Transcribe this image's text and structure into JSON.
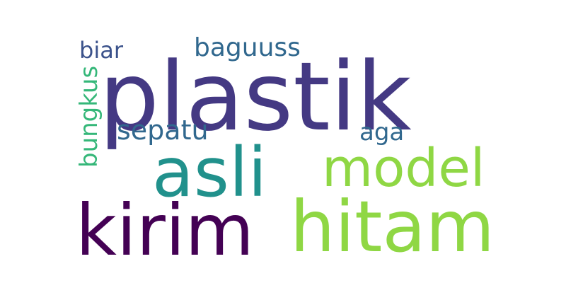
{
  "word_cloud": {
    "words": [
      {
        "text": "plastik",
        "color": "#443983"
      },
      {
        "text": "asli",
        "color": "#21918c"
      },
      {
        "text": "kirim",
        "color": "#440154"
      },
      {
        "text": "hitam",
        "color": "#8fd744"
      },
      {
        "text": "model",
        "color": "#8fd744"
      },
      {
        "text": "sepatu",
        "color": "#31688e"
      },
      {
        "text": "baguuss",
        "color": "#31688e"
      },
      {
        "text": "biar",
        "color": "#3b528b"
      },
      {
        "text": "aga",
        "color": "#31688e"
      },
      {
        "text": "bungkus",
        "color": "#35b779"
      }
    ]
  }
}
